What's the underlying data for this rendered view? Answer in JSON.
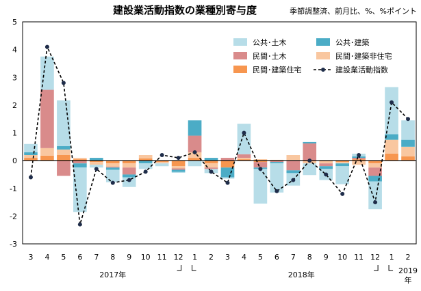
{
  "chart_data": {
    "type": "bar",
    "title": "建設業活動指数の業種別寄与度",
    "subtitle": "季節調整済、前月比、%、%ポイント",
    "ylim": [
      -3,
      5
    ],
    "yticks": [
      -3,
      -2,
      -1,
      0,
      1,
      2,
      3,
      4,
      5
    ],
    "categories": [
      "3",
      "4",
      "5",
      "6",
      "7",
      "8",
      "9",
      "10",
      "11",
      "12",
      "1",
      "2",
      "3",
      "4",
      "5",
      "6",
      "7",
      "8",
      "9",
      "10",
      "11",
      "12",
      "1",
      "2"
    ],
    "year_labels": [
      {
        "text": "2017年",
        "at": 5.5
      },
      {
        "text": "2018年",
        "at": 17
      },
      {
        "text": "2019年",
        "at": 23
      }
    ],
    "stacked": true,
    "series": [
      {
        "name": "民間・建築住宅",
        "color": "#f7964f",
        "values": [
          0.1,
          0.18,
          0.2,
          0.05,
          -0.05,
          -0.1,
          -0.1,
          0.08,
          -0.05,
          -0.2,
          0.1,
          -0.1,
          -0.25,
          0.05,
          -0.05,
          0.0,
          0.02,
          -0.03,
          -0.03,
          -0.05,
          0.05,
          -0.1,
          0.25,
          0.15
        ]
      },
      {
        "name": "民間・建築非住宅",
        "color": "#f9c7a0",
        "values": [
          0.1,
          0.27,
          0.2,
          0.05,
          -0.1,
          -0.12,
          -0.15,
          0.12,
          -0.05,
          -0.08,
          0.2,
          -0.15,
          0.0,
          0.05,
          0.05,
          0.03,
          0.18,
          -0.07,
          -0.07,
          -0.05,
          -0.15,
          -0.15,
          0.5,
          0.35
        ]
      },
      {
        "name": "民間・土木",
        "color": "#d98b8b",
        "values": [
          0.0,
          2.1,
          -0.55,
          -0.1,
          0.0,
          -0.03,
          -0.25,
          0.0,
          0.0,
          -0.05,
          0.6,
          -0.05,
          0.1,
          0.13,
          -0.2,
          -0.05,
          -0.35,
          0.62,
          -0.1,
          0.0,
          0.05,
          -0.3,
          0.0,
          0.0
        ]
      },
      {
        "name": "公共・建築",
        "color": "#4bacc6",
        "values": [
          0.1,
          0.0,
          0.12,
          -0.15,
          0.1,
          -0.08,
          -0.1,
          -0.1,
          0.0,
          -0.08,
          0.55,
          0.1,
          -0.35,
          0.0,
          -0.05,
          -0.05,
          -0.1,
          0.05,
          -0.1,
          -0.1,
          0.05,
          -0.2,
          0.2,
          0.25
        ]
      },
      {
        "name": "公共・土木",
        "color": "#b7dde8",
        "values": [
          0.3,
          1.2,
          1.65,
          -1.6,
          -0.1,
          -0.45,
          -0.35,
          -0.2,
          -0.1,
          -0.03,
          -0.2,
          -0.15,
          -0.05,
          1.1,
          -1.25,
          -1.05,
          -0.45,
          -0.42,
          -0.4,
          -0.65,
          0.1,
          -1.0,
          1.7,
          0.7
        ]
      }
    ],
    "line": {
      "name": "建設業活動指数",
      "color": "#000000",
      "values": [
        -0.6,
        4.1,
        2.8,
        -2.3,
        -0.3,
        -0.8,
        -0.7,
        -0.4,
        0.2,
        0.1,
        0.3,
        -0.4,
        -0.8,
        1.0,
        -0.3,
        -1.1,
        -0.7,
        0.0,
        -0.5,
        -1.2,
        0.2,
        -1.5,
        2.1,
        1.5
      ]
    },
    "legend": {
      "placement": "top-right",
      "items": [
        {
          "label": "公共･土木",
          "color": "#b7dde8",
          "kind": "box"
        },
        {
          "label": "公共･建築",
          "color": "#4bacc6",
          "kind": "box"
        },
        {
          "label": "民間･土木",
          "color": "#d98b8b",
          "kind": "box"
        },
        {
          "label": "民間･建築非住宅",
          "color": "#f9c7a0",
          "kind": "box"
        },
        {
          "label": "民間･建築住宅",
          "color": "#f7964f",
          "kind": "box"
        },
        {
          "label": "建設業活動指数",
          "color": "#000000",
          "kind": "line"
        }
      ]
    }
  }
}
